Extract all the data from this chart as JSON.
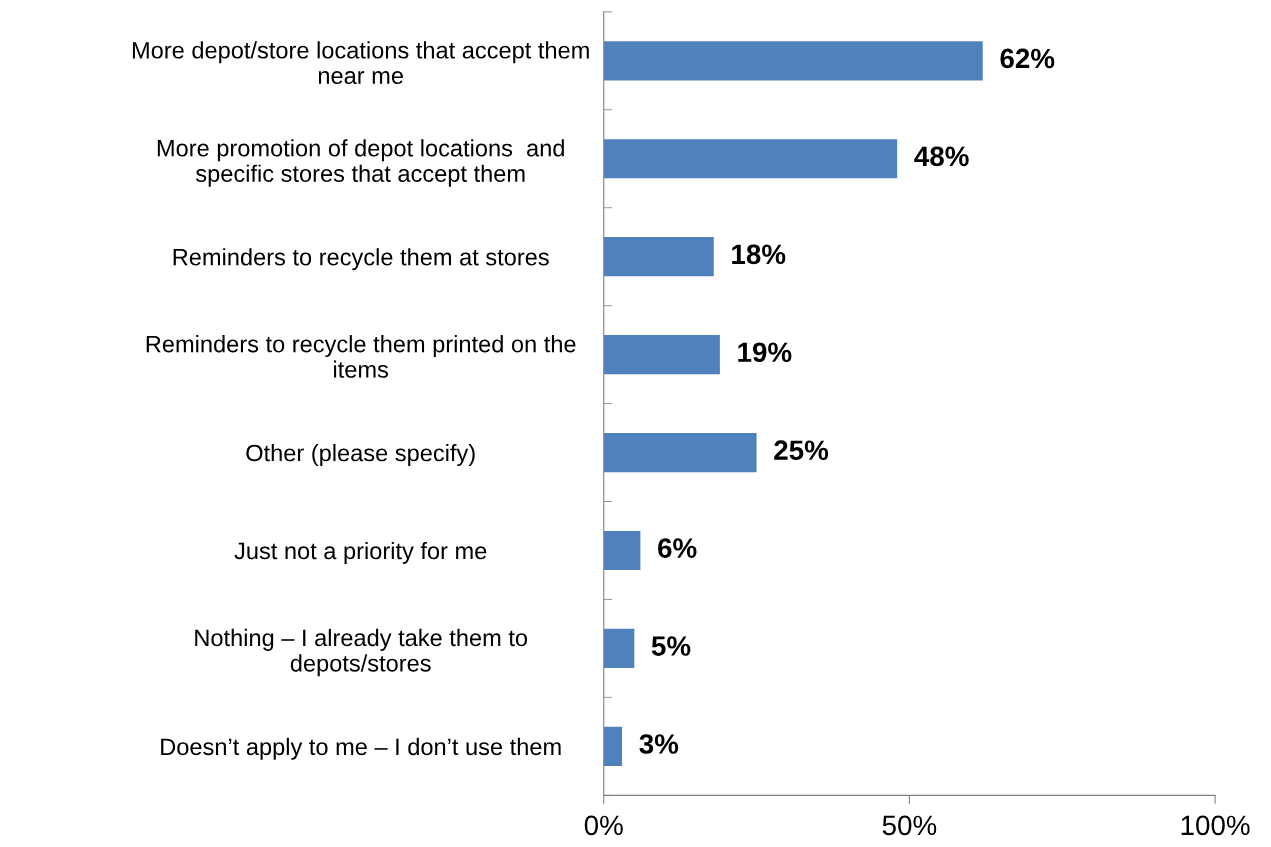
{
  "chart_data": {
    "type": "bar",
    "orientation": "horizontal",
    "categories": [
      "More depot/store locations that accept them\nnear me",
      "More promotion of depot locations  and\nspecific stores that accept them",
      "Reminders to recycle them at stores",
      "Reminders to recycle them printed on the\nitems",
      "Other (please specify)",
      "Just not a priority for me",
      "Nothing – I already take them to\ndepots/stores",
      "Doesn’t apply to me – I don’t use them"
    ],
    "values": [
      62,
      48,
      18,
      19,
      25,
      6,
      5,
      3
    ],
    "color": "#4f81bd",
    "value_labels": [
      "62%",
      "48%",
      "18%",
      "19%",
      "25%",
      "6%",
      "5%",
      "3%"
    ],
    "xlim": [
      0,
      100
    ],
    "xticks": [
      {
        "value": 0,
        "label": "0%"
      },
      {
        "value": 50,
        "label": "50%"
      },
      {
        "value": 100,
        "label": "100%"
      }
    ],
    "grid": false,
    "legend": false
  }
}
